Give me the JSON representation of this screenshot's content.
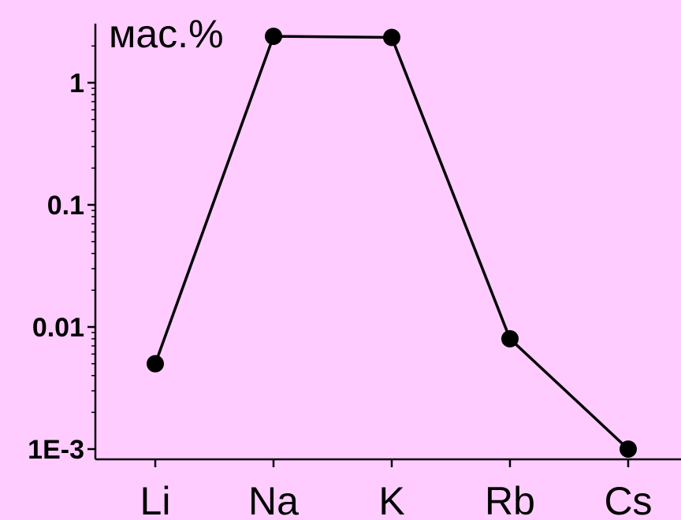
{
  "chart_data": {
    "type": "line",
    "scale_y": "log",
    "categories": [
      "Li",
      "Na",
      "K",
      "Rb",
      "Cs"
    ],
    "values": [
      0.005,
      2.4,
      2.35,
      0.008,
      0.001
    ],
    "ylabel": "мас.%",
    "ylim": [
      0.00085,
      2.6
    ],
    "y_ticks": [
      {
        "value": 1,
        "label": "1"
      },
      {
        "value": 0.1,
        "label": "0.1"
      },
      {
        "value": 0.01,
        "label": "0.01"
      },
      {
        "value": 0.001,
        "label": "1E-3"
      }
    ],
    "grid": false,
    "legend": "none",
    "colors": {
      "background": "#ffccff",
      "line": "#000000",
      "marker": "#000000"
    }
  }
}
